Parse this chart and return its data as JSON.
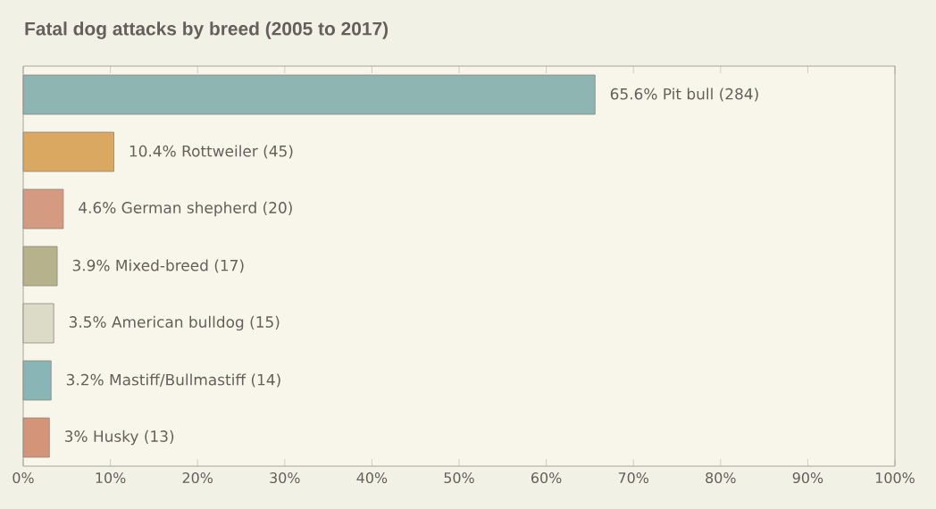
{
  "chart_data": {
    "type": "bar",
    "orientation": "horizontal",
    "title": "Fatal dog attacks by breed (2005 to 2017)",
    "categories": [
      null,
      null,
      null,
      null,
      null,
      null,
      null
    ],
    "values": [
      65.6,
      10.4,
      4.6,
      3.9,
      3.5,
      3.2,
      3
    ],
    "colors": [
      "#8eb5b1",
      "#dba862",
      "#d49a82",
      "#b6b38c",
      "#dcdbc8",
      "#8ab5b7",
      "#d4947a"
    ],
    "value_labels": [
      "65.6% Pit bull (284)",
      "10.4% Rottweiler (45)",
      "4.6% German shepherd (20)",
      "3.9% Mixed-breed (17)",
      "3.5% American bulldog (15)",
      "3.2% Mastiff/Bullmastiff (14)",
      "3% Husky (13)"
    ],
    "xlim": [
      0,
      100
    ],
    "xticks": [
      {
        "value": 0,
        "label": "0%"
      },
      {
        "value": 10,
        "label": "10%"
      },
      {
        "value": 20,
        "label": "20%"
      },
      {
        "value": 30,
        "label": "30%"
      },
      {
        "value": 40,
        "label": "40%"
      },
      {
        "value": 50,
        "label": "50%"
      },
      {
        "value": 60,
        "label": "60%"
      },
      {
        "value": 70,
        "label": "70%"
      },
      {
        "value": 80,
        "label": "80%"
      },
      {
        "value": 90,
        "label": "90%"
      },
      {
        "value": 100,
        "label": "100%"
      }
    ]
  }
}
